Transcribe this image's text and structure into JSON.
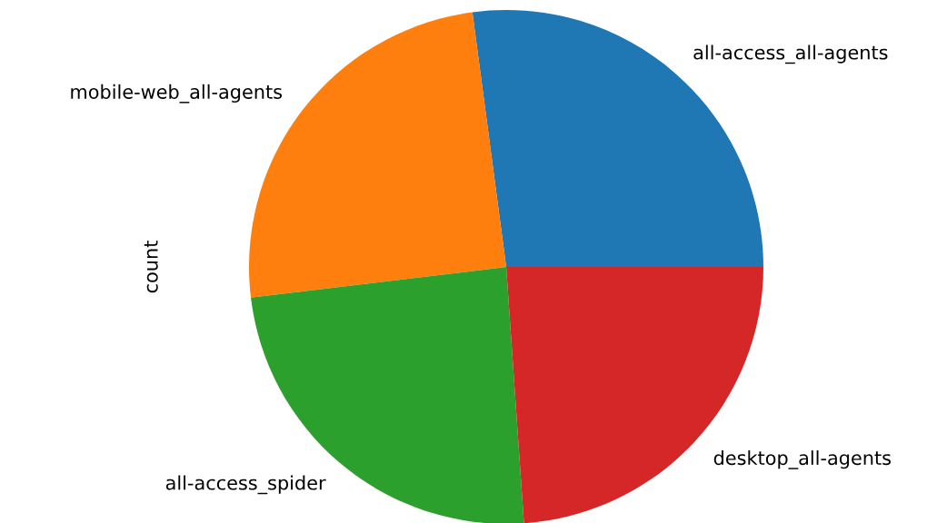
{
  "chart_data": {
    "type": "pie",
    "ylabel": "count",
    "categories": [
      "all-access_all-agents",
      "mobile-web_all-agents",
      "all-access_spider",
      "desktop_all-agents"
    ],
    "values": [
      27.1,
      24.8,
      24.2,
      23.9
    ],
    "colors": [
      "#1f77b4",
      "#ff7f0e",
      "#2ca02c",
      "#d62728"
    ]
  }
}
